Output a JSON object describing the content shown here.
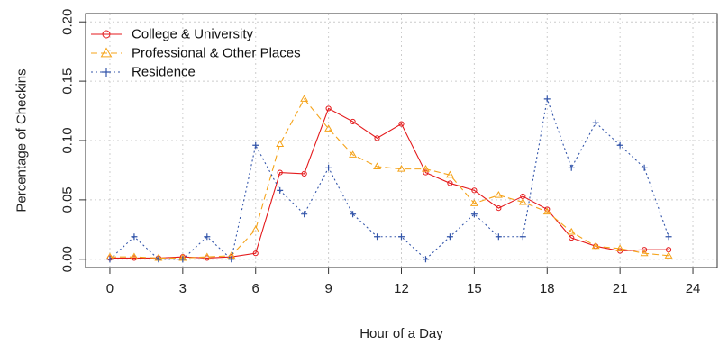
{
  "chart_data": {
    "type": "line",
    "title": "",
    "xlabel": "Hour of a Day",
    "ylabel": "Percentage of Checkins",
    "xlim": [
      -1,
      25
    ],
    "ylim": [
      -0.007,
      0.207
    ],
    "xticks": [
      0,
      3,
      6,
      9,
      12,
      15,
      18,
      21,
      24
    ],
    "yticks": [
      0.0,
      0.05,
      0.1,
      0.15,
      0.2
    ],
    "ytick_labels": [
      "0.00",
      "0.05",
      "0.10",
      "0.15",
      "0.20"
    ],
    "grid": true,
    "legend_position": "top-left",
    "x": [
      0,
      1,
      2,
      3,
      4,
      5,
      6,
      7,
      8,
      9,
      10,
      11,
      12,
      13,
      14,
      15,
      16,
      17,
      18,
      19,
      20,
      21,
      22,
      23
    ],
    "series": [
      {
        "name": "College & University",
        "color": "#e41a1c",
        "marker": "circle",
        "line": "solid",
        "values": [
          0.001,
          0.001,
          0.001,
          0.002,
          0.001,
          0.002,
          0.005,
          0.073,
          0.072,
          0.127,
          0.116,
          0.102,
          0.114,
          0.073,
          0.064,
          0.058,
          0.043,
          0.053,
          0.042,
          0.018,
          0.011,
          0.007,
          0.008,
          0.008
        ]
      },
      {
        "name": "Professional & Other Places",
        "color": "#f5a31a",
        "marker": "triangle",
        "line": "dashed",
        "values": [
          0.002,
          0.002,
          0.001,
          0.001,
          0.002,
          0.003,
          0.025,
          0.097,
          0.135,
          0.11,
          0.088,
          0.078,
          0.076,
          0.076,
          0.071,
          0.047,
          0.054,
          0.048,
          0.04,
          0.023,
          0.011,
          0.009,
          0.005,
          0.003
        ]
      },
      {
        "name": "Residence",
        "color": "#3355aa",
        "marker": "plus",
        "line": "dotted",
        "values": [
          0.0,
          0.019,
          0.0,
          0.0,
          0.019,
          0.0,
          0.096,
          0.058,
          0.038,
          0.077,
          0.038,
          0.019,
          0.019,
          0.0,
          0.019,
          0.038,
          0.019,
          0.019,
          0.135,
          0.077,
          0.115,
          0.096,
          0.077,
          0.019
        ]
      }
    ]
  }
}
